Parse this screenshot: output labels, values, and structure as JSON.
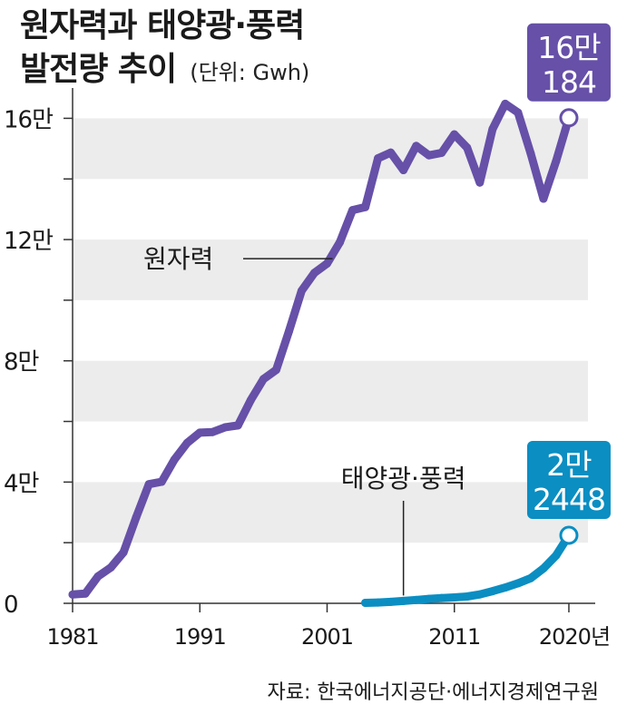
{
  "chart_data": {
    "type": "line",
    "title": [
      "원자력과 태양광·풍력",
      "발전량 추이"
    ],
    "unit_label": "(단위: Gwh)",
    "x_ticks": [
      "1981",
      "1991",
      "2001",
      "2011",
      "2020년"
    ],
    "x_tick_years": [
      1981,
      1991,
      2001,
      2011,
      2020
    ],
    "xlim": [
      1981,
      2021.5
    ],
    "y_ticks": [
      "0",
      "4만",
      "8만",
      "12만",
      "16만"
    ],
    "y_tick_values": [
      0,
      40000,
      80000,
      120000,
      160000
    ],
    "ylim": [
      0,
      170000
    ],
    "source": "자료: 한국에너지공단·에너지경제연구원",
    "colors": {
      "nuclear": "#6650a8",
      "renewable": "#0b8ec2",
      "band": "#ececec"
    },
    "series": [
      {
        "name": "원자력",
        "label": "원자력",
        "color": "#6650a8",
        "callout": [
          "16만",
          "184"
        ],
        "x": [
          1981,
          1982,
          1983,
          1984,
          1985,
          1986,
          1987,
          1988,
          1989,
          1990,
          1991,
          1992,
          1993,
          1994,
          1995,
          1996,
          1997,
          1998,
          1999,
          2000,
          2001,
          2002,
          2003,
          2004,
          2005,
          2006,
          2007,
          2008,
          2009,
          2010,
          2011,
          2012,
          2013,
          2014,
          2015,
          2016,
          2017,
          2018,
          2019,
          2020
        ],
        "values": [
          2897,
          3200,
          8900,
          11800,
          16800,
          28400,
          39300,
          40100,
          47400,
          52900,
          56300,
          56500,
          58100,
          58700,
          67000,
          74000,
          77000,
          89700,
          103100,
          109000,
          112100,
          119100,
          129700,
          130700,
          146800,
          148700,
          142900,
          150900,
          147800,
          148600,
          154700,
          150300,
          138800,
          156400,
          164800,
          161900,
          148400,
          133500,
          145900,
          160184
        ]
      },
      {
        "name": "태양광·풍력",
        "label": "태양광·풍력",
        "color": "#0b8ec2",
        "callout": [
          "2만",
          "2448"
        ],
        "x": [
          2004,
          2005,
          2006,
          2007,
          2008,
          2009,
          2010,
          2011,
          2012,
          2013,
          2014,
          2015,
          2016,
          2017,
          2018,
          2019,
          2020
        ],
        "values": [
          160,
          260,
          480,
          780,
          1120,
          1470,
          1740,
          1950,
          2250,
          2920,
          4000,
          5200,
          6600,
          8300,
          11500,
          15800,
          22448
        ]
      }
    ]
  }
}
